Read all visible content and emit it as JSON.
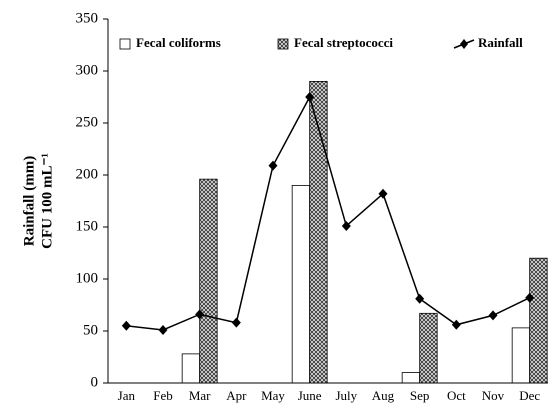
{
  "chart_data": {
    "type": "bar",
    "categories": [
      "Jan",
      "Feb",
      "Mar",
      "Apr",
      "May",
      "June",
      "July",
      "Aug",
      "Sep",
      "Oct",
      "Nov",
      "Dec"
    ],
    "y_label": [
      "Rainfall (mm)",
      "CFU 100 mL⁻¹"
    ],
    "series": [
      {
        "name": "Fecal coliforms",
        "type": "bar",
        "color": "#ffffff",
        "values": [
          null,
          null,
          28,
          null,
          null,
          190,
          null,
          null,
          10,
          null,
          null,
          53
        ]
      },
      {
        "name": "Fecal streptococci",
        "type": "bar",
        "color": "#555555",
        "pattern": "crosshatch",
        "values": [
          null,
          null,
          196,
          null,
          null,
          290,
          null,
          null,
          67,
          null,
          null,
          120
        ]
      },
      {
        "name": "Rainfall",
        "type": "line",
        "color": "#000000",
        "values": [
          55,
          51,
          66,
          58,
          209,
          275,
          151,
          182,
          81,
          56,
          65,
          82
        ]
      }
    ],
    "ylim": [
      0,
      350
    ],
    "yticks": [
      0,
      50,
      100,
      150,
      200,
      250,
      300,
      350
    ],
    "legend": "top"
  }
}
